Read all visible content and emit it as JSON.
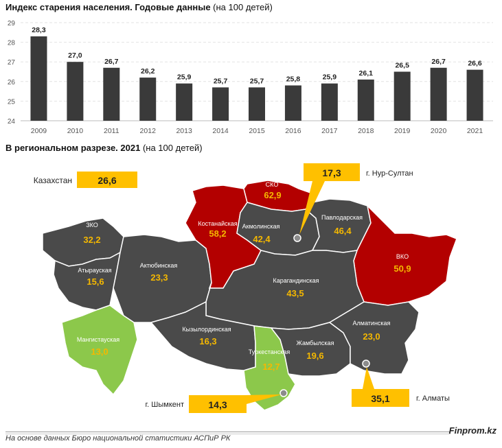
{
  "chart_title": {
    "bold": "Индекс старения населения. Годовые данные",
    "normal": "(на 100 детей)"
  },
  "map_title": {
    "bold": "В региональном разрезе. 2021",
    "normal": "(на 100 детей)"
  },
  "chart_data": [
    {
      "type": "bar",
      "categories": [
        "2009",
        "2010",
        "2011",
        "2012",
        "2013",
        "2014",
        "2015",
        "2016",
        "2017",
        "2018",
        "2019",
        "2020",
        "2021"
      ],
      "values": [
        28.3,
        27.0,
        26.7,
        26.2,
        25.9,
        25.7,
        25.7,
        25.8,
        25.9,
        26.1,
        26.5,
        26.7,
        26.6
      ],
      "value_labels": [
        "28,3",
        "27,0",
        "26,7",
        "26,2",
        "25,9",
        "25,7",
        "25,7",
        "25,8",
        "25,9",
        "26,1",
        "26,5",
        "26,7",
        "26,6"
      ],
      "yticks": [
        "24",
        "25",
        "26",
        "27",
        "28",
        "29"
      ],
      "ylim": [
        24,
        29
      ],
      "grid": true,
      "bar_color": "#3a3a3a"
    }
  ],
  "map": {
    "kazakhstan": {
      "label": "Казахстан",
      "value": "26,6"
    },
    "regions": [
      {
        "name": "ЗКО",
        "value": "32,2",
        "fill": "#4a4a4a"
      },
      {
        "name": "Атырауская",
        "value": "15,6",
        "fill": "#4a4a4a"
      },
      {
        "name": "Актюбинская",
        "value": "23,3",
        "fill": "#4a4a4a"
      },
      {
        "name": "Мангистауская",
        "value": "13,0",
        "fill": "#8cc84b"
      },
      {
        "name": "Костанайская",
        "value": "58,2",
        "fill": "#b30000"
      },
      {
        "name": "СКО",
        "value": "62,9",
        "fill": "#b30000"
      },
      {
        "name": "Акмолинская",
        "value": "42,4",
        "fill": "#4a4a4a"
      },
      {
        "name": "Павлодарская",
        "value": "46,4",
        "fill": "#4a4a4a"
      },
      {
        "name": "ВКО",
        "value": "50,9",
        "fill": "#b30000"
      },
      {
        "name": "Карагандинская",
        "value": "43,5",
        "fill": "#4a4a4a"
      },
      {
        "name": "Кызылординская",
        "value": "16,3",
        "fill": "#4a4a4a"
      },
      {
        "name": "Туркестанская",
        "value": "12,7",
        "fill": "#8cc84b"
      },
      {
        "name": "Жамбылская",
        "value": "19,6",
        "fill": "#4a4a4a"
      },
      {
        "name": "Алматинская",
        "value": "23,0",
        "fill": "#4a4a4a"
      }
    ],
    "cities": [
      {
        "name": "г. Нур-Султан",
        "value": "17,3"
      },
      {
        "name": "г. Шымкент",
        "value": "14,3"
      },
      {
        "name": "г. Алматы",
        "value": "35,1"
      }
    ],
    "colors": {
      "value_text": "#f5b800",
      "callout": "#ffc000",
      "gray": "#4a4a4a",
      "red": "#b30000",
      "green": "#8cc84b"
    }
  },
  "footer": {
    "source": "На основе данных Бюро национальной статистики АСПиР РК",
    "brand": "Finprom.kz"
  }
}
